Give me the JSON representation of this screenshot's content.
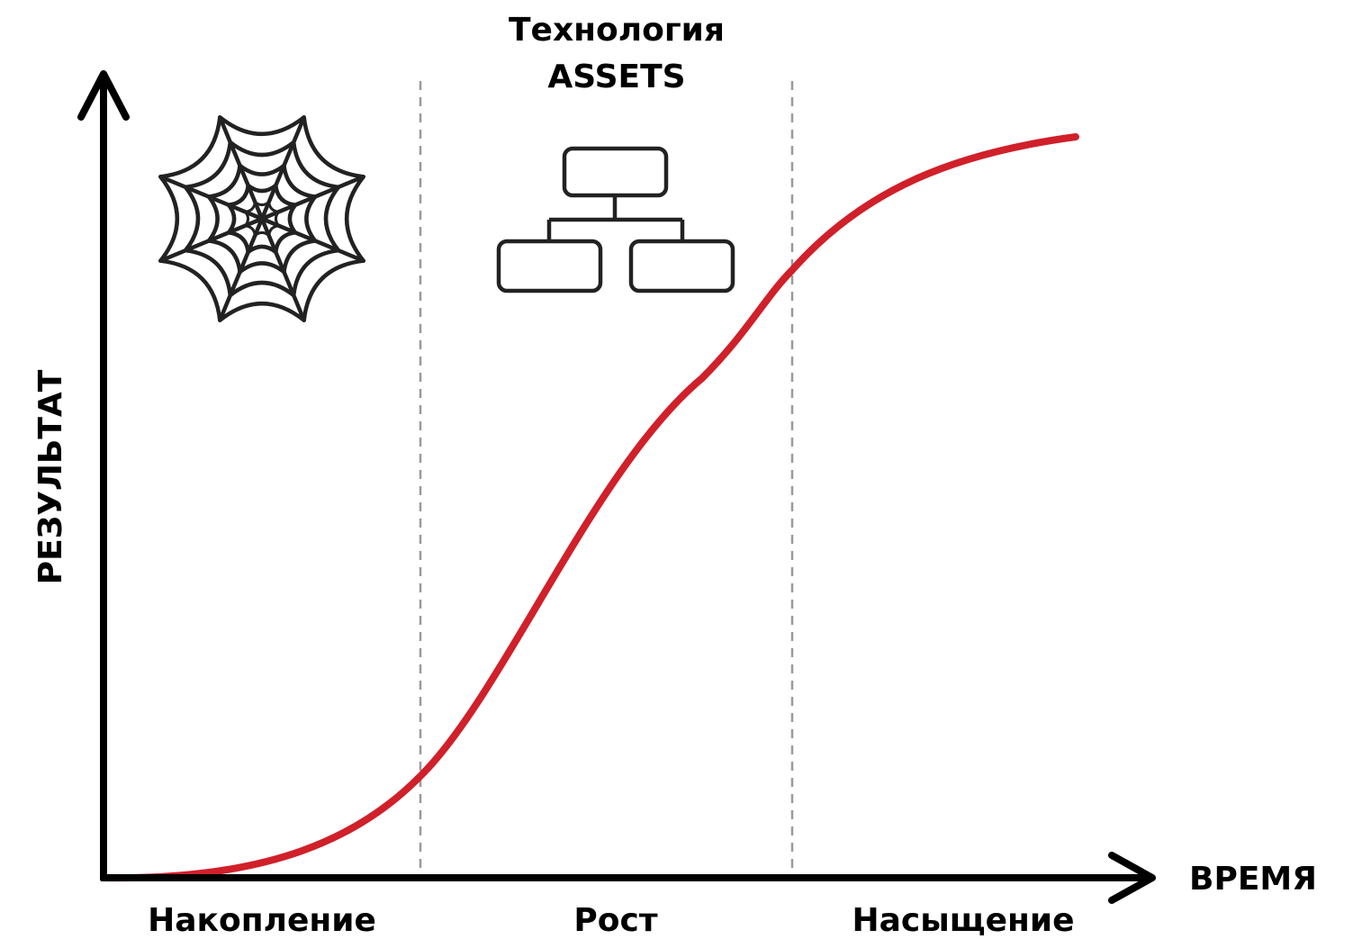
{
  "title_line1": "Технология",
  "title_line2": "ASSETS",
  "y_axis_label": "РЕЗУЛЬТАТ",
  "x_axis_label": "ВРЕМЯ",
  "phases": [
    {
      "label": "Накопление"
    },
    {
      "label": "Рост"
    },
    {
      "label": "Насыщение"
    }
  ],
  "icons": {
    "phase1": "spider-web-icon",
    "phase2": "org-chart-icon"
  },
  "colors": {
    "curve": "#d0202a",
    "axis": "#000000",
    "divider": "#9a9a9a"
  }
}
